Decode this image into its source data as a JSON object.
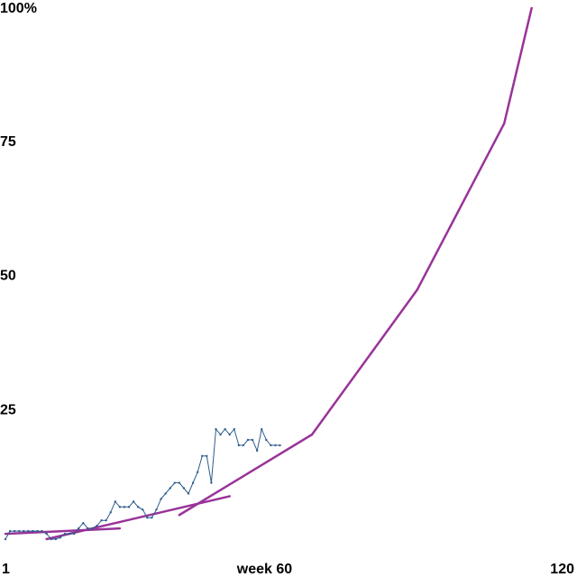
{
  "chart_data": {
    "type": "line",
    "title": "",
    "xlabel": "",
    "ylabel": "",
    "xlim": [
      1,
      120
    ],
    "ylim": [
      0,
      100
    ],
    "x_ticks": [
      {
        "value": 1,
        "label": "1"
      },
      {
        "value": 60,
        "label": "week 60"
      },
      {
        "value": 120,
        "label": "120"
      }
    ],
    "y_ticks": [
      {
        "value": 100,
        "label": "100%"
      },
      {
        "value": 75,
        "label": "75"
      },
      {
        "value": 50,
        "label": "50"
      },
      {
        "value": 25,
        "label": "25"
      }
    ],
    "grid": false,
    "legend": "none",
    "colors": {
      "observed": "#2e5d8c",
      "trend": "#993399"
    },
    "series": [
      {
        "style": "thin-line-with-markers",
        "x": [
          1,
          2,
          3,
          4,
          5,
          6,
          7,
          8,
          9,
          10,
          11,
          12,
          13,
          14,
          15,
          16,
          17,
          18,
          19,
          20,
          21,
          22,
          23,
          24,
          25,
          26,
          27,
          28,
          29,
          30,
          31,
          32,
          33,
          34,
          35,
          36,
          37,
          38,
          39,
          40,
          41,
          42,
          43,
          44,
          45,
          46,
          47,
          48,
          49,
          50,
          51,
          52,
          53,
          54,
          55,
          56,
          57,
          58,
          59,
          60,
          61
        ],
        "values": [
          0.5,
          2,
          2,
          2,
          2,
          2,
          2,
          2,
          2,
          1.5,
          0.5,
          0.5,
          0.8,
          1.5,
          1.5,
          1.5,
          2.5,
          3.5,
          2.5,
          2.5,
          3,
          4,
          4,
          5.5,
          7.5,
          6.5,
          6.5,
          6.5,
          7.5,
          6.5,
          6,
          4.5,
          4.5,
          6,
          8,
          9,
          10,
          11,
          11,
          10,
          9,
          11,
          13,
          16,
          16,
          11,
          21,
          20,
          21,
          20,
          21,
          18,
          18,
          19,
          19,
          17,
          21,
          19,
          18,
          18,
          18
        ]
      },
      {
        "style": "piecewise-tangent-segments",
        "segments": [
          {
            "x": [
              1,
              26
            ],
            "values": [
              1.5,
              2.5
            ]
          },
          {
            "x": [
              10,
              50
            ],
            "values": [
              0.5,
              8.5
            ]
          },
          {
            "x": [
              39,
              68
            ],
            "values": [
              5,
              20
            ]
          },
          {
            "x": [
              68,
              91
            ],
            "values": [
              20,
              47
            ]
          },
          {
            "x": [
              91,
              110
            ],
            "values": [
              47,
              78
            ]
          },
          {
            "x": [
              110,
              116
            ],
            "values": [
              78,
              99.5
            ]
          }
        ]
      }
    ]
  }
}
